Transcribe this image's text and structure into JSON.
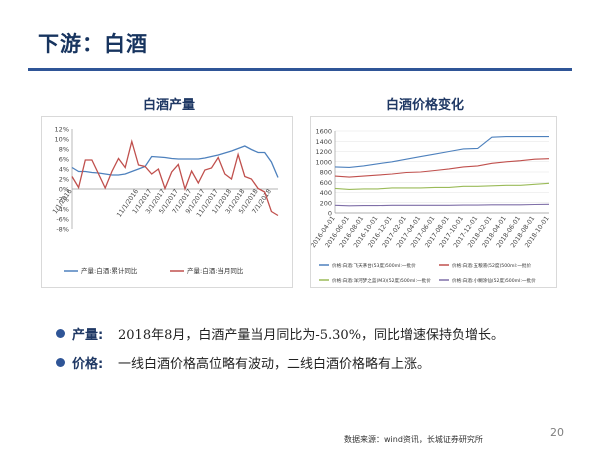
{
  "slide": {
    "title": "下游：白酒",
    "page_number": "20",
    "source": "数据来源：wind资讯，长城证券研究所",
    "bullets": [
      {
        "key": "产量:",
        "text": "2018年8月，白酒产量当月同比为-5.30%，同比增速保持负增长。"
      },
      {
        "key": "价格:",
        "text": "一线白酒价格高位略有波动，二线白酒价格略有上涨。"
      }
    ]
  },
  "chart_data": [
    {
      "type": "line",
      "title": "白酒产量",
      "x": [
        "1/1/2016",
        "2/1/2016",
        "3/1/2016",
        "4/1/2016",
        "5/1/2016",
        "6/1/2016",
        "7/1/2016",
        "8/1/2016",
        "9/1/2016",
        "10/1/2016",
        "11/1/2016",
        "12/1/2016",
        "1/1/2017",
        "2/1/2017",
        "3/1/2017",
        "4/1/2017",
        "5/1/2017",
        "6/1/2017",
        "7/1/2017",
        "8/1/2017",
        "9/1/2017",
        "10/1/2017",
        "11/1/2017",
        "12/1/2017",
        "1/1/2018",
        "2/1/2018",
        "3/1/2018",
        "4/1/2018",
        "5/1/2018",
        "6/1/2018",
        "7/1/2018",
        "8/1/2018"
      ],
      "xtick_labels": [
        "1/1/2016",
        "11/1/2016",
        "1/1/2017",
        "3/1/2017",
        "5/1/2017",
        "7/1/2017",
        "9/1/2017",
        "11/1/2017",
        "1/1/2018",
        "3/1/2018",
        "5/1/2018",
        "7/1/2018"
      ],
      "ylim": [
        -8,
        12
      ],
      "yticks": [
        "12%",
        "10%",
        "8%",
        "6%",
        "4%",
        "2%",
        "0%",
        "-2%",
        "-4%",
        "-6%",
        "-8%"
      ],
      "series": [
        {
          "name": "产量:白酒:累计同比",
          "color": "#4e81bd",
          "values": [
            4.3,
            3.5,
            3.5,
            3.3,
            3.2,
            3.0,
            2.8,
            2.8,
            3.0,
            3.5,
            4.0,
            4.5,
            6.5,
            6.4,
            6.3,
            6.1,
            6.0,
            6.0,
            6.0,
            6.0,
            6.2,
            6.5,
            6.8,
            7.2,
            7.6,
            8.1,
            8.6,
            7.9,
            7.3,
            7.3,
            5.4,
            2.3
          ]
        },
        {
          "name": "产量:白酒:当月同比",
          "color": "#c0504d",
          "values": [
            2.5,
            0.3,
            5.8,
            5.8,
            3.0,
            0.2,
            3.5,
            6.1,
            4.3,
            9.5,
            4.8,
            4.5,
            3.0,
            4.0,
            0.1,
            3.4,
            4.9,
            0.0,
            3.6,
            1.2,
            3.8,
            4.2,
            6.3,
            3.0,
            2.0,
            6.9,
            2.5,
            2.0,
            0.1,
            -0.6,
            -4.5,
            -5.3
          ]
        }
      ],
      "legend": "bottom"
    },
    {
      "type": "line",
      "title": "白酒价格变化",
      "x": [
        "2016-04-01",
        "2016-06-01",
        "2016-08-01",
        "2016-10-01",
        "2016-12-01",
        "2017-02-01",
        "2017-04-01",
        "2017-06-01",
        "2017-08-01",
        "2017-10-01",
        "2017-12-01",
        "2018-02-01",
        "2018-04-01",
        "2018-06-01",
        "2018-08-01",
        "2018-10-01"
      ],
      "ylim": [
        0,
        1600
      ],
      "yticks": [
        "1600",
        "1400",
        "1200",
        "1000",
        "800",
        "600",
        "400",
        "200",
        "0"
      ],
      "series": [
        {
          "name": "价格:白酒:飞天茅台(53度)500ml:一批价",
          "color": "#4e81bd",
          "values": [
            900,
            890,
            920,
            960,
            1000,
            1050,
            1100,
            1150,
            1200,
            1250,
            1260,
            1480,
            1490,
            1490,
            1490,
            1490
          ]
        },
        {
          "name": "价格:白酒:五粮液(52度)500ml:一批价",
          "color": "#c0504d",
          "values": [
            720,
            700,
            720,
            740,
            760,
            790,
            800,
            830,
            860,
            900,
            920,
            970,
            1000,
            1020,
            1050,
            1060
          ]
        },
        {
          "name": "价格:白酒:洋河梦之蓝(M3)(52度)500ml:一批价",
          "color": "#9bbb59",
          "values": [
            480,
            460,
            470,
            470,
            490,
            490,
            490,
            500,
            500,
            520,
            520,
            530,
            540,
            540,
            560,
            580
          ]
        },
        {
          "name": "价格:白酒:小糊涂仙(52度)500ml:一批价",
          "color": "#7f6fa8",
          "values": [
            150,
            140,
            145,
            145,
            150,
            150,
            150,
            150,
            150,
            155,
            155,
            160,
            160,
            160,
            165,
            170
          ]
        }
      ],
      "legend": "bottom"
    }
  ]
}
